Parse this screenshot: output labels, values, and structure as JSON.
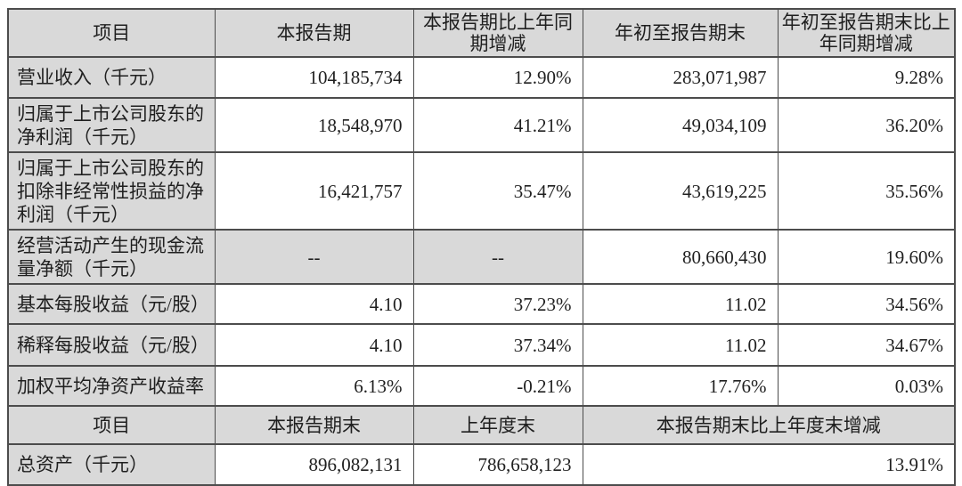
{
  "table": {
    "colors": {
      "header_bg": "#d9d9d9",
      "border": "#4c4c4c",
      "text": "#1f1f1f"
    },
    "header1": {
      "item": "项目",
      "current_period": "本报告期",
      "current_yoy": "本报告期比上年同期增减",
      "ytd": "年初至报告期末",
      "ytd_yoy": "年初至报告期末比上年同期增减"
    },
    "rows": [
      {
        "label": "营业收入（千元）",
        "current": "104,185,734",
        "yoy": "12.90%",
        "ytd": "283,071,987",
        "ytd_yoy": "9.28%"
      },
      {
        "label": "归属于上市公司股东的净利润（千元）",
        "current": "18,548,970",
        "yoy": "41.21%",
        "ytd": "49,034,109",
        "ytd_yoy": "36.20%"
      },
      {
        "label": "归属于上市公司股东的扣除非经常性损益的净利润（千元）",
        "current": "16,421,757",
        "yoy": "35.47%",
        "ytd": "43,619,225",
        "ytd_yoy": "35.56%"
      },
      {
        "label": "经营活动产生的现金流量净额（千元）",
        "current": "--",
        "yoy": "--",
        "ytd": "80,660,430",
        "ytd_yoy": "19.60%",
        "muted_cells": [
          "current",
          "yoy"
        ]
      },
      {
        "label": "基本每股收益（元/股）",
        "current": "4.10",
        "yoy": "37.23%",
        "ytd": "11.02",
        "ytd_yoy": "34.56%"
      },
      {
        "label": "稀释每股收益（元/股）",
        "current": "4.10",
        "yoy": "37.34%",
        "ytd": "11.02",
        "ytd_yoy": "34.67%"
      },
      {
        "label": "加权平均净资产收益率",
        "current": "6.13%",
        "yoy": "-0.21%",
        "ytd": "17.76%",
        "ytd_yoy": "0.03%"
      }
    ],
    "header2": {
      "item": "项目",
      "period_end": "本报告期末",
      "prev_year_end": "上年度末",
      "change": "本报告期末比上年度末增减"
    },
    "rows2": [
      {
        "label": "总资产（千元）",
        "period_end": "896,082,131",
        "prev_year_end": "786,658,123",
        "change": "13.91%"
      }
    ]
  }
}
